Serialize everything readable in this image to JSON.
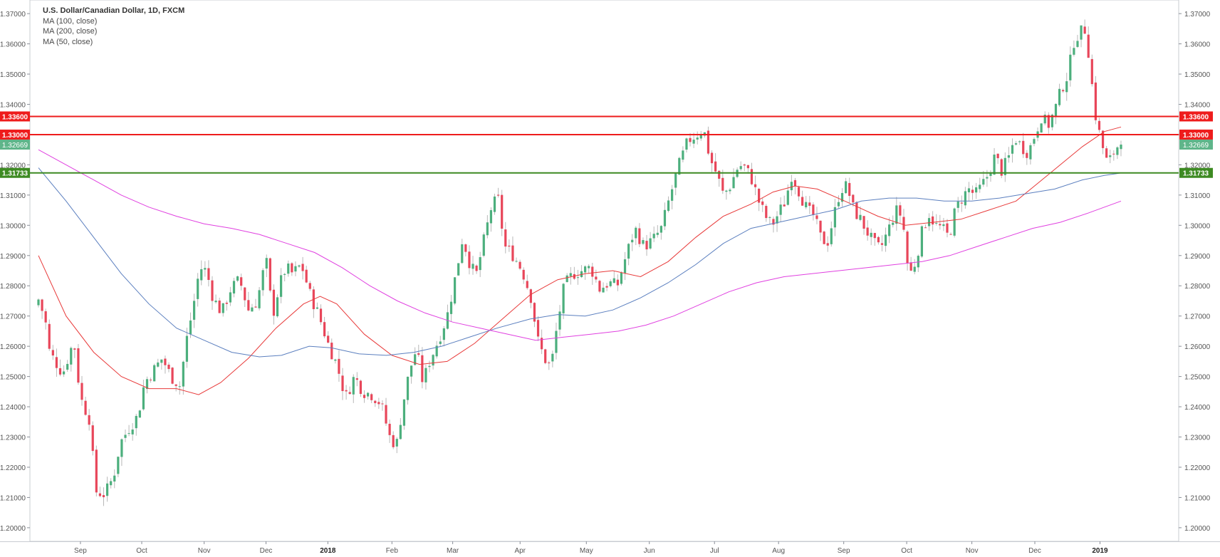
{
  "header": {
    "title": "U.S. Dollar/Canadian Dollar, 1D, FXCM",
    "indicators": [
      "MA (100, close)",
      "MA (200, close)",
      "MA (50, close)"
    ]
  },
  "colors": {
    "up": "#4caf7d",
    "down": "#e8465a",
    "ma50": "#e83a3a",
    "ma100": "#5b7fbf",
    "ma200": "#e040e0",
    "resistance": "#ee1c1c",
    "support": "#3d8a22",
    "last_price_badge": "#5fb58a"
  },
  "chart_data": {
    "type": "candlestick",
    "symbol": "USDCAD",
    "timeframe": "1D",
    "source": "FXCM",
    "ylim": [
      1.1955,
      1.3745
    ],
    "y_ticks": [
      "1.37000",
      "1.36000",
      "1.35000",
      "1.34000",
      "1.33000",
      "1.32000",
      "1.31000",
      "1.30000",
      "1.29000",
      "1.28000",
      "1.27000",
      "1.26000",
      "1.25000",
      "1.24000",
      "1.23000",
      "1.22000",
      "1.21000",
      "1.20000"
    ],
    "x_ticks": [
      {
        "label": "Sep",
        "pos": 0.038
      },
      {
        "label": "Oct",
        "pos": 0.0935
      },
      {
        "label": "Nov",
        "pos": 0.15
      },
      {
        "label": "Dec",
        "pos": 0.206
      },
      {
        "label": "2018",
        "pos": 0.262
      },
      {
        "label": "Feb",
        "pos": 0.32
      },
      {
        "label": "Mar",
        "pos": 0.375
      },
      {
        "label": "Apr",
        "pos": 0.436
      },
      {
        "label": "May",
        "pos": 0.496
      },
      {
        "label": "Jun",
        "pos": 0.553
      },
      {
        "label": "Jul",
        "pos": 0.612
      },
      {
        "label": "Aug",
        "pos": 0.67
      },
      {
        "label": "Sep",
        "pos": 0.729
      },
      {
        "label": "Oct",
        "pos": 0.786
      },
      {
        "label": "Nov",
        "pos": 0.845
      },
      {
        "label": "Dec",
        "pos": 0.902
      },
      {
        "label": "2019",
        "pos": 0.961
      }
    ],
    "close_anchors": [
      [
        0.0,
        1.2755
      ],
      [
        0.006,
        1.269
      ],
      [
        0.01,
        1.258
      ],
      [
        0.022,
        1.251
      ],
      [
        0.032,
        1.262
      ],
      [
        0.038,
        1.243
      ],
      [
        0.046,
        1.236
      ],
      [
        0.052,
        1.212
      ],
      [
        0.06,
        1.211
      ],
      [
        0.068,
        1.217
      ],
      [
        0.074,
        1.228
      ],
      [
        0.082,
        1.233
      ],
      [
        0.09,
        1.237
      ],
      [
        0.096,
        1.248
      ],
      [
        0.104,
        1.252
      ],
      [
        0.112,
        1.256
      ],
      [
        0.12,
        1.25
      ],
      [
        0.128,
        1.247
      ],
      [
        0.134,
        1.262
      ],
      [
        0.14,
        1.273
      ],
      [
        0.146,
        1.286
      ],
      [
        0.152,
        1.285
      ],
      [
        0.158,
        1.276
      ],
      [
        0.166,
        1.271
      ],
      [
        0.174,
        1.279
      ],
      [
        0.182,
        1.282
      ],
      [
        0.19,
        1.272
      ],
      [
        0.198,
        1.275
      ],
      [
        0.206,
        1.289
      ],
      [
        0.212,
        1.27
      ],
      [
        0.218,
        1.28
      ],
      [
        0.224,
        1.286
      ],
      [
        0.23,
        1.284
      ],
      [
        0.238,
        1.287
      ],
      [
        0.246,
        1.277
      ],
      [
        0.254,
        1.27
      ],
      [
        0.262,
        1.261
      ],
      [
        0.27,
        1.254
      ],
      [
        0.278,
        1.243
      ],
      [
        0.286,
        1.25
      ],
      [
        0.294,
        1.245
      ],
      [
        0.302,
        1.244
      ],
      [
        0.31,
        1.241
      ],
      [
        0.318,
        1.23
      ],
      [
        0.324,
        1.227
      ],
      [
        0.33,
        1.241
      ],
      [
        0.336,
        1.252
      ],
      [
        0.342,
        1.259
      ],
      [
        0.348,
        1.248
      ],
      [
        0.354,
        1.255
      ],
      [
        0.362,
        1.262
      ],
      [
        0.37,
        1.27
      ],
      [
        0.378,
        1.284
      ],
      [
        0.384,
        1.296
      ],
      [
        0.39,
        1.288
      ],
      [
        0.396,
        1.283
      ],
      [
        0.402,
        1.293
      ],
      [
        0.41,
        1.306
      ],
      [
        0.416,
        1.309
      ],
      [
        0.422,
        1.293
      ],
      [
        0.43,
        1.29
      ],
      [
        0.438,
        1.285
      ],
      [
        0.446,
        1.276
      ],
      [
        0.452,
        1.262
      ],
      [
        0.458,
        1.256
      ],
      [
        0.464,
        1.253
      ],
      [
        0.47,
        1.268
      ],
      [
        0.476,
        1.28
      ],
      [
        0.484,
        1.284
      ],
      [
        0.492,
        1.285
      ],
      [
        0.5,
        1.286
      ],
      [
        0.508,
        1.279
      ],
      [
        0.516,
        1.281
      ],
      [
        0.524,
        1.28
      ],
      [
        0.532,
        1.29
      ],
      [
        0.54,
        1.299
      ],
      [
        0.548,
        1.293
      ],
      [
        0.556,
        1.295
      ],
      [
        0.564,
        1.299
      ],
      [
        0.572,
        1.31
      ],
      [
        0.58,
        1.32
      ],
      [
        0.588,
        1.328
      ],
      [
        0.596,
        1.33
      ],
      [
        0.602,
        1.332
      ],
      [
        0.608,
        1.322
      ],
      [
        0.614,
        1.317
      ],
      [
        0.62,
        1.31
      ],
      [
        0.626,
        1.313
      ],
      [
        0.634,
        1.32
      ],
      [
        0.64,
        1.319
      ],
      [
        0.646,
        1.315
      ],
      [
        0.652,
        1.308
      ],
      [
        0.658,
        1.303
      ],
      [
        0.664,
        1.3
      ],
      [
        0.67,
        1.304
      ],
      [
        0.676,
        1.308
      ],
      [
        0.682,
        1.317
      ],
      [
        0.69,
        1.31
      ],
      [
        0.696,
        1.305
      ],
      [
        0.702,
        1.303
      ],
      [
        0.708,
        1.296
      ],
      [
        0.714,
        1.294
      ],
      [
        0.72,
        1.303
      ],
      [
        0.726,
        1.312
      ],
      [
        0.732,
        1.313
      ],
      [
        0.738,
        1.305
      ],
      [
        0.744,
        1.302
      ],
      [
        0.75,
        1.298
      ],
      [
        0.756,
        1.294
      ],
      [
        0.762,
        1.292
      ],
      [
        0.77,
        1.299
      ],
      [
        0.776,
        1.305
      ],
      [
        0.782,
        1.303
      ],
      [
        0.788,
        1.283
      ],
      [
        0.794,
        1.288
      ],
      [
        0.8,
        1.298
      ],
      [
        0.806,
        1.304
      ],
      [
        0.812,
        1.3
      ],
      [
        0.818,
        1.299
      ],
      [
        0.824,
        1.296
      ],
      [
        0.83,
        1.305
      ],
      [
        0.836,
        1.309
      ],
      [
        0.842,
        1.312
      ],
      [
        0.848,
        1.31
      ],
      [
        0.854,
        1.313
      ],
      [
        0.86,
        1.317
      ],
      [
        0.866,
        1.323
      ],
      [
        0.872,
        1.318
      ],
      [
        0.878,
        1.322
      ],
      [
        0.884,
        1.329
      ],
      [
        0.89,
        1.326
      ],
      [
        0.896,
        1.324
      ],
      [
        0.902,
        1.33
      ],
      [
        0.908,
        1.336
      ],
      [
        0.914,
        1.333
      ],
      [
        0.92,
        1.338
      ],
      [
        0.926,
        1.345
      ],
      [
        0.932,
        1.35
      ],
      [
        0.938,
        1.362
      ],
      [
        0.944,
        1.364
      ],
      [
        0.948,
        1.365
      ],
      [
        0.952,
        1.353
      ],
      [
        0.956,
        1.338
      ],
      [
        0.96,
        1.331
      ],
      [
        0.964,
        1.325
      ],
      [
        0.968,
        1.32
      ],
      [
        0.972,
        1.323
      ],
      [
        0.976,
        1.326
      ],
      [
        0.98,
        1.32669
      ]
    ],
    "series": [
      {
        "name": "MA (50, close)",
        "color": "#e83a3a",
        "values": [
          [
            0.0,
            1.29
          ],
          [
            0.025,
            1.27
          ],
          [
            0.05,
            1.258
          ],
          [
            0.075,
            1.25
          ],
          [
            0.1,
            1.246
          ],
          [
            0.125,
            1.246
          ],
          [
            0.145,
            1.244
          ],
          [
            0.165,
            1.248
          ],
          [
            0.19,
            1.256
          ],
          [
            0.215,
            1.266
          ],
          [
            0.24,
            1.274
          ],
          [
            0.255,
            1.2765
          ],
          [
            0.27,
            1.274
          ],
          [
            0.295,
            1.264
          ],
          [
            0.32,
            1.257
          ],
          [
            0.345,
            1.254
          ],
          [
            0.37,
            1.255
          ],
          [
            0.395,
            1.261
          ],
          [
            0.42,
            1.269
          ],
          [
            0.445,
            1.277
          ],
          [
            0.47,
            1.282
          ],
          [
            0.495,
            1.284
          ],
          [
            0.52,
            1.285
          ],
          [
            0.545,
            1.283
          ],
          [
            0.57,
            1.288
          ],
          [
            0.595,
            1.296
          ],
          [
            0.62,
            1.303
          ],
          [
            0.645,
            1.307
          ],
          [
            0.665,
            1.311
          ],
          [
            0.685,
            1.313
          ],
          [
            0.705,
            1.312
          ],
          [
            0.73,
            1.308
          ],
          [
            0.76,
            1.303
          ],
          [
            0.785,
            1.3
          ],
          [
            0.81,
            1.301
          ],
          [
            0.835,
            1.302
          ],
          [
            0.86,
            1.305
          ],
          [
            0.885,
            1.308
          ],
          [
            0.905,
            1.314
          ],
          [
            0.925,
            1.32
          ],
          [
            0.945,
            1.326
          ],
          [
            0.965,
            1.331
          ],
          [
            0.98,
            1.3325
          ]
        ]
      },
      {
        "name": "MA (100, close)",
        "color": "#5b7fbf",
        "values": [
          [
            0.0,
            1.319
          ],
          [
            0.025,
            1.308
          ],
          [
            0.05,
            1.296
          ],
          [
            0.075,
            1.284
          ],
          [
            0.1,
            1.274
          ],
          [
            0.125,
            1.266
          ],
          [
            0.15,
            1.262
          ],
          [
            0.175,
            1.258
          ],
          [
            0.2,
            1.2565
          ],
          [
            0.22,
            1.257
          ],
          [
            0.245,
            1.26
          ],
          [
            0.265,
            1.2595
          ],
          [
            0.29,
            1.2575
          ],
          [
            0.315,
            1.257
          ],
          [
            0.34,
            1.258
          ],
          [
            0.365,
            1.26
          ],
          [
            0.39,
            1.263
          ],
          [
            0.415,
            1.266
          ],
          [
            0.445,
            1.269
          ],
          [
            0.47,
            1.2705
          ],
          [
            0.495,
            1.27
          ],
          [
            0.52,
            1.272
          ],
          [
            0.545,
            1.276
          ],
          [
            0.57,
            1.281
          ],
          [
            0.595,
            1.287
          ],
          [
            0.62,
            1.294
          ],
          [
            0.645,
            1.299
          ],
          [
            0.67,
            1.301
          ],
          [
            0.695,
            1.303
          ],
          [
            0.72,
            1.305
          ],
          [
            0.745,
            1.308
          ],
          [
            0.77,
            1.309
          ],
          [
            0.795,
            1.309
          ],
          [
            0.82,
            1.308
          ],
          [
            0.845,
            1.308
          ],
          [
            0.87,
            1.309
          ],
          [
            0.895,
            1.3105
          ],
          [
            0.92,
            1.312
          ],
          [
            0.945,
            1.315
          ],
          [
            0.965,
            1.3165
          ],
          [
            0.98,
            1.3173
          ]
        ]
      },
      {
        "name": "MA (200, close)",
        "color": "#e040e0",
        "values": [
          [
            0.0,
            1.325
          ],
          [
            0.025,
            1.32
          ],
          [
            0.05,
            1.315
          ],
          [
            0.075,
            1.31
          ],
          [
            0.1,
            1.306
          ],
          [
            0.125,
            1.303
          ],
          [
            0.15,
            1.3005
          ],
          [
            0.175,
            1.299
          ],
          [
            0.2,
            1.297
          ],
          [
            0.225,
            1.294
          ],
          [
            0.25,
            1.291
          ],
          [
            0.275,
            1.286
          ],
          [
            0.3,
            1.28
          ],
          [
            0.325,
            1.275
          ],
          [
            0.35,
            1.271
          ],
          [
            0.375,
            1.268
          ],
          [
            0.4,
            1.266
          ],
          [
            0.425,
            1.264
          ],
          [
            0.45,
            1.262
          ],
          [
            0.475,
            1.263
          ],
          [
            0.5,
            1.264
          ],
          [
            0.525,
            1.265
          ],
          [
            0.55,
            1.267
          ],
          [
            0.575,
            1.27
          ],
          [
            0.6,
            1.274
          ],
          [
            0.625,
            1.278
          ],
          [
            0.65,
            1.281
          ],
          [
            0.675,
            1.283
          ],
          [
            0.7,
            1.284
          ],
          [
            0.725,
            1.285
          ],
          [
            0.75,
            1.286
          ],
          [
            0.775,
            1.287
          ],
          [
            0.8,
            1.288
          ],
          [
            0.825,
            1.29
          ],
          [
            0.85,
            1.293
          ],
          [
            0.875,
            1.296
          ],
          [
            0.9,
            1.299
          ],
          [
            0.925,
            1.301
          ],
          [
            0.95,
            1.304
          ],
          [
            0.965,
            1.306
          ],
          [
            0.98,
            1.308
          ]
        ]
      }
    ],
    "levels": [
      {
        "value": 1.336,
        "label": "1.33600",
        "color": "#ee1c1c",
        "kind": "resistance"
      },
      {
        "value": 1.33,
        "label": "1.33000",
        "color": "#ee1c1c",
        "kind": "resistance"
      },
      {
        "value": 1.31733,
        "label": "1.31733",
        "color": "#3d8a22",
        "kind": "support"
      }
    ],
    "last_price": {
      "value": 1.32669,
      "label": "1.32669",
      "color": "#5fb58a"
    },
    "grid": false,
    "legend_position": "top-left"
  }
}
